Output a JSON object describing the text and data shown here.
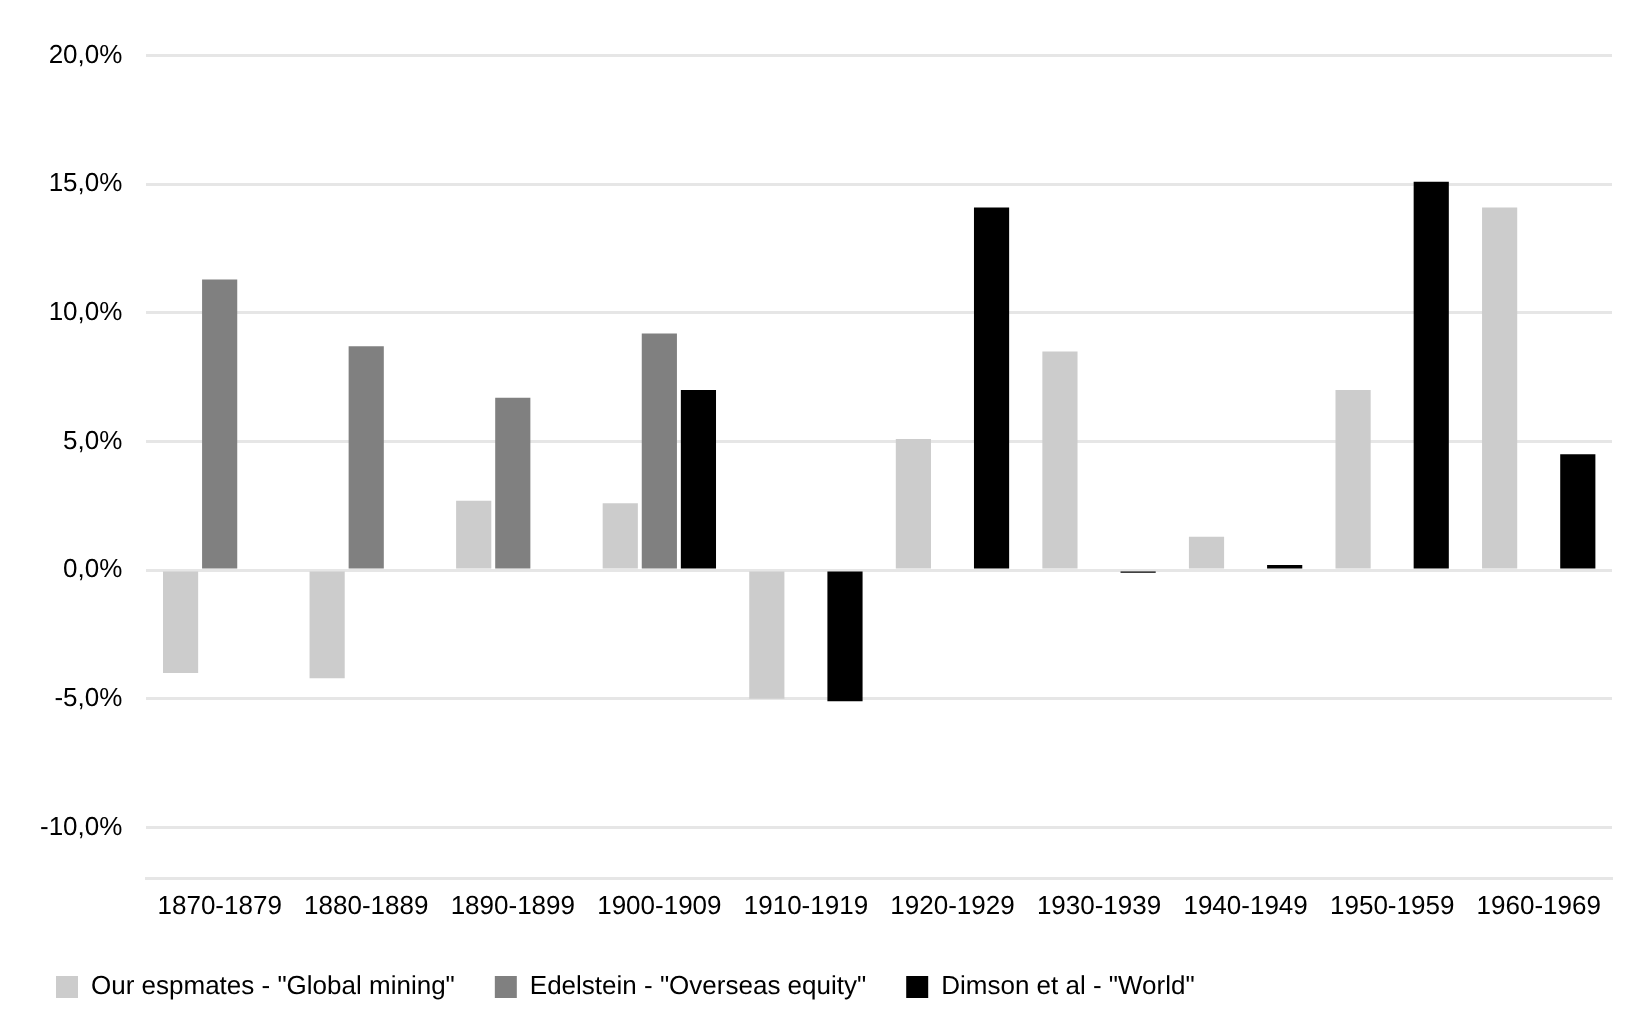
{
  "chart_data": {
    "type": "bar",
    "categories": [
      "1870-1879",
      "1880-1889",
      "1890-1899",
      "1900-1909",
      "1910-1919",
      "1920-1929",
      "1930-1939",
      "1940-1949",
      "1950-1959",
      "1960-1969"
    ],
    "series": [
      {
        "name": "Our espmates - \"Global mining\"",
        "color": "#cccccc",
        "values": [
          -4.0,
          -4.2,
          2.7,
          2.6,
          -5.0,
          5.1,
          8.5,
          1.3,
          7.0,
          14.1
        ]
      },
      {
        "name": "Edelstein - \"Overseas equity\"",
        "color": "#808080",
        "values": [
          11.3,
          8.7,
          6.7,
          9.2,
          null,
          null,
          null,
          null,
          null,
          null
        ]
      },
      {
        "name": "Dimson et al - \"World\"",
        "color": "#000000",
        "values": [
          null,
          null,
          null,
          7.0,
          -5.1,
          14.1,
          -0.1,
          0.2,
          15.1,
          4.5
        ]
      }
    ],
    "ylim": [
      -12,
      20
    ],
    "yticks": [
      {
        "value": -10,
        "label": "-10,0%"
      },
      {
        "value": -5,
        "label": "-5,0%"
      },
      {
        "value": 0,
        "label": "0,0%"
      },
      {
        "value": 5,
        "label": "5,0%"
      },
      {
        "value": 10,
        "label": "10,0%"
      },
      {
        "value": 15,
        "label": "15,0%"
      },
      {
        "value": 20,
        "label": "20,0%"
      }
    ],
    "grid": "y",
    "legend": "bottom"
  }
}
